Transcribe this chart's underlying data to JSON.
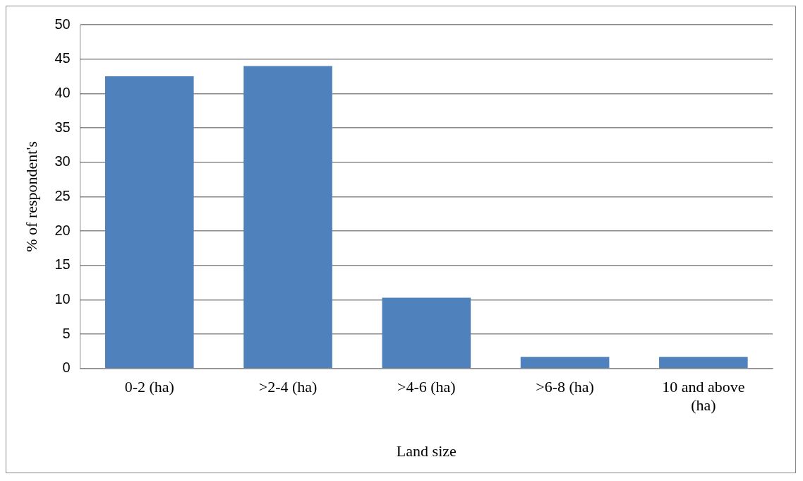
{
  "chart_data": {
    "type": "bar",
    "xlabel": "Land size",
    "ylabel": "% of respondent's",
    "categories": [
      "0-2 (ha)",
      ">2-4 (ha)",
      ">4-6 (ha)",
      ">6-8 (ha)",
      "10 and above (ha)"
    ],
    "values": [
      42.5,
      44,
      10.3,
      1.7,
      1.7
    ],
    "color": "#4f81bd",
    "ylim": [
      0,
      50
    ],
    "yticks": [
      0,
      5,
      10,
      15,
      20,
      25,
      30,
      35,
      40,
      45,
      50
    ],
    "grid": "y",
    "legend": false
  }
}
